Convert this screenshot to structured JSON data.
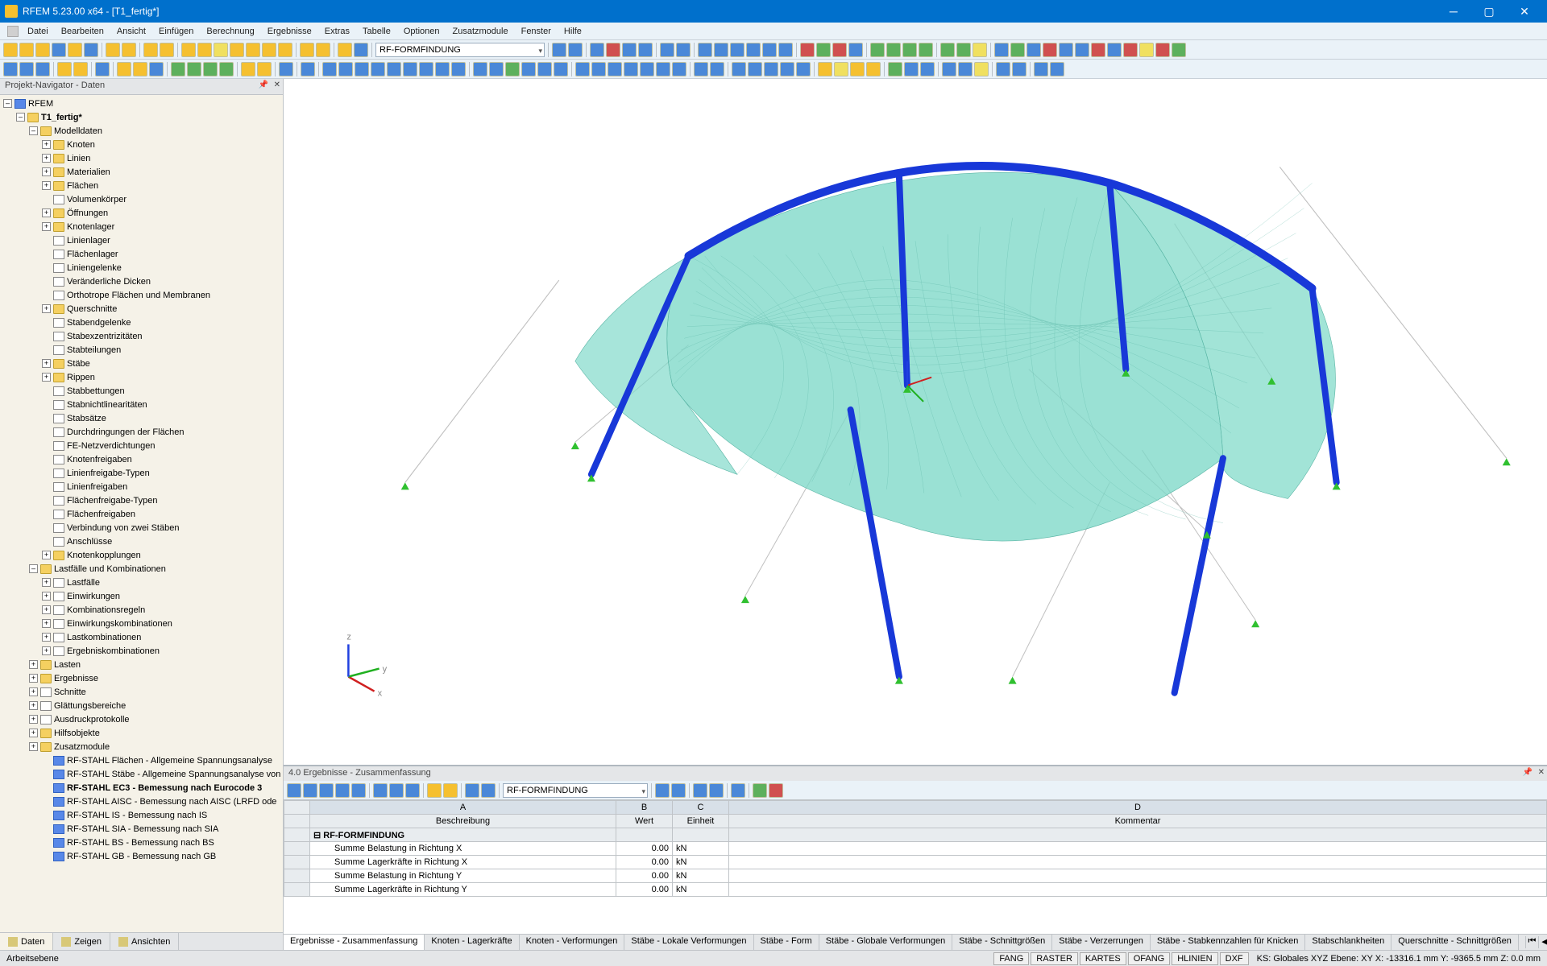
{
  "title": "RFEM 5.23.00 x64 - [T1_fertig*]",
  "menus": [
    "Datei",
    "Bearbeiten",
    "Ansicht",
    "Einfügen",
    "Berechnung",
    "Ergebnisse",
    "Extras",
    "Tabelle",
    "Optionen",
    "Zusatzmodule",
    "Fenster",
    "Hilfe"
  ],
  "formfind": "RF-FORMFINDUNG",
  "nav_title": "Projekt-Navigator - Daten",
  "root": "RFEM",
  "model": "T1_fertig*",
  "tree_modelldaten": "Modelldaten",
  "tree_md": [
    "Knoten",
    "Linien",
    "Materialien",
    "Flächen",
    "Volumenkörper",
    "Öffnungen",
    "Knotenlager",
    "Linienlager",
    "Flächenlager",
    "Liniengelenke",
    "Veränderliche Dicken",
    "Orthotrope Flächen und Membranen",
    "Querschnitte",
    "Stabendgelenke",
    "Stabexzentrizitäten",
    "Stabteilungen",
    "Stäbe",
    "Rippen",
    "Stabbettungen",
    "Stabnichtlinearitäten",
    "Stabsätze",
    "Durchdringungen der Flächen",
    "FE-Netzverdichtungen",
    "Knotenfreigaben",
    "Linienfreigabe-Typen",
    "Linienfreigaben",
    "Flächenfreigabe-Typen",
    "Flächenfreigaben",
    "Verbindung von zwei Stäben",
    "Anschlüsse",
    "Knotenkopplungen"
  ],
  "tree_md_exp": [
    true,
    true,
    true,
    true,
    false,
    true,
    true,
    false,
    false,
    false,
    false,
    false,
    true,
    false,
    false,
    false,
    true,
    true,
    false,
    false,
    false,
    false,
    false,
    false,
    false,
    false,
    false,
    false,
    false,
    false,
    true
  ],
  "tree_lk": "Lastfälle und Kombinationen",
  "tree_lk_items": [
    "Lastfälle",
    "Einwirkungen",
    "Kombinationsregeln",
    "Einwirkungskombinationen",
    "Lastkombinationen",
    "Ergebniskombinationen"
  ],
  "tree_rest": [
    "Lasten",
    "Ergebnisse",
    "Schnitte",
    "Glättungsbereiche",
    "Ausdruckprotokolle",
    "Hilfsobjekte",
    "Zusatzmodule"
  ],
  "tree_rest_fold": [
    true,
    true,
    false,
    false,
    false,
    true,
    true
  ],
  "tree_mods": [
    "RF-STAHL Flächen - Allgemeine Spannungsanalyse",
    "RF-STAHL Stäbe - Allgemeine Spannungsanalyse von",
    "RF-STAHL EC3 - Bemessung nach Eurocode 3",
    "RF-STAHL AISC - Bemessung nach AISC (LRFD ode",
    "RF-STAHL IS - Bemessung nach IS",
    "RF-STAHL SIA - Bemessung nach SIA",
    "RF-STAHL BS - Bemessung nach BS",
    "RF-STAHL GB - Bemessung nach GB"
  ],
  "tree_mod_sel": 2,
  "nav_tabs": [
    "Daten",
    "Zeigen",
    "Ansichten"
  ],
  "res_title": "4.0 Ergebnisse - Zusammenfassung",
  "res_combo": "RF-FORMFINDUNG",
  "res_col_letters": [
    "A",
    "B",
    "C",
    "D"
  ],
  "res_cols": [
    "Beschreibung",
    "Wert",
    "Einheit",
    "Kommentar"
  ],
  "res_group": "RF-FORMFINDUNG",
  "res_rows": [
    {
      "d": "Summe Belastung in Richtung X",
      "w": "0.00",
      "e": "kN"
    },
    {
      "d": "Summe Lagerkräfte in Richtung X",
      "w": "0.00",
      "e": "kN"
    },
    {
      "d": "Summe Belastung in Richtung Y",
      "w": "0.00",
      "e": "kN"
    },
    {
      "d": "Summe Lagerkräfte in Richtung Y",
      "w": "0.00",
      "e": "kN"
    }
  ],
  "res_tabs": [
    "Ergebnisse - Zusammenfassung",
    "Knoten - Lagerkräfte",
    "Knoten - Verformungen",
    "Stäbe - Lokale Verformungen",
    "Stäbe - Form",
    "Stäbe - Globale Verformungen",
    "Stäbe - Schnittgrößen",
    "Stäbe - Verzerrungen",
    "Stäbe - Stabkennzahlen für Knicken",
    "Stabschlankheiten",
    "Querschnitte - Schnittgrößen"
  ],
  "status_left": "Arbeitsebene",
  "status_boxes": [
    "FANG",
    "RASTER",
    "KARTES",
    "OFANG",
    "HLINIEN",
    "DXF"
  ],
  "status_right": "KS: Globales XYZ  Ebene:  XY          X:  -13316.1 mm Y:   -9365.5 mm Z:   0.0 mm",
  "membrane": {
    "fill": "#7ed9c8",
    "stroke": "#5ab5a5",
    "beam_color": "#1838d8",
    "support_color": "#30c030"
  }
}
